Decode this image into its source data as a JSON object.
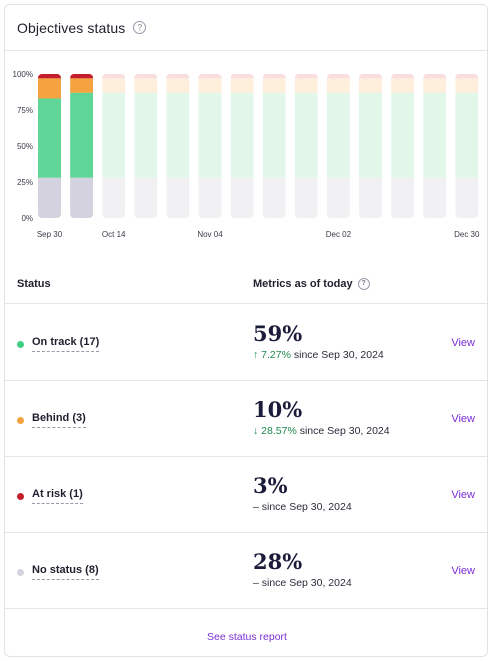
{
  "header": {
    "title": "Objectives status",
    "help_glyph": "?"
  },
  "chart_data": {
    "type": "bar",
    "stacked": true,
    "y_ticks": [
      "0%",
      "25%",
      "50%",
      "75%",
      "100%"
    ],
    "ylim": [
      0,
      100
    ],
    "x_tick_labels": [
      "Sep 30",
      "Oct 14",
      "Nov 04",
      "Dec 02",
      "Dec 30"
    ],
    "bars_total": 14,
    "bars_with_data": 2,
    "colors": {
      "no_status": "#d4d2de",
      "on_track": "#5fd597",
      "behind": "#f4a340",
      "at_risk": "#c41e2c",
      "future_no_status": "#f1f1f4",
      "future_on_track": "#e2f7ea",
      "future_behind": "#fdefdc",
      "future_at_risk": "#f8dede"
    },
    "series": [
      {
        "name": "No status",
        "values": [
          28,
          28
        ]
      },
      {
        "name": "On track",
        "values": [
          55,
          59
        ]
      },
      {
        "name": "Behind",
        "values": [
          14,
          10
        ]
      },
      {
        "name": "At risk",
        "values": [
          3,
          3
        ]
      }
    ]
  },
  "table": {
    "status_header": "Status",
    "metrics_header": "Metrics as of today",
    "rows": [
      {
        "dot_color": "#3fcf84",
        "label": "On track (17)",
        "value": "59%",
        "arrow": "↑",
        "delta": "7.27%",
        "since": " since Sep 30, 2024",
        "view": "View"
      },
      {
        "dot_color": "#f4a340",
        "label": "Behind (3)",
        "value": "10%",
        "arrow": "↓",
        "delta": "28.57%",
        "since": " since Sep 30, 2024",
        "view": "View"
      },
      {
        "dot_color": "#c41e2c",
        "label": "At risk (1)",
        "value": "3%",
        "arrow": "",
        "delta": "–",
        "since": " since Sep 30, 2024",
        "view": "View"
      },
      {
        "dot_color": "#d4d2de",
        "label": "No status (8)",
        "value": "28%",
        "arrow": "",
        "delta": "–",
        "since": " since Sep 30, 2024",
        "view": "View"
      }
    ]
  },
  "footer": {
    "link": "See status report"
  }
}
